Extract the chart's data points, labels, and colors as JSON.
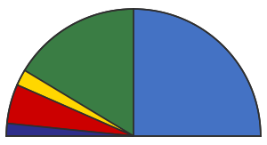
{
  "segments": [
    {
      "label": "Blue",
      "seats": 110,
      "color": "#4472C4"
    },
    {
      "label": "Green",
      "seats": 72,
      "color": "#3A7D44"
    },
    {
      "label": "Yellow",
      "seats": 9,
      "color": "#FFD700"
    },
    {
      "label": "Red",
      "seats": 22,
      "color": "#CC0000"
    },
    {
      "label": "Navy",
      "seats": 7,
      "color": "#2E2E8B"
    }
  ],
  "total": 220,
  "background_color": "#FFFFFF",
  "edge_color": "#2F2F2F",
  "edge_width": 1.2
}
